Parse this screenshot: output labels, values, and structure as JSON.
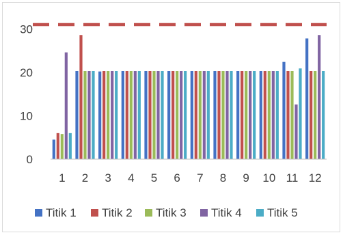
{
  "chart_data": {
    "type": "bar",
    "categories": [
      "1",
      "2",
      "3",
      "4",
      "5",
      "6",
      "7",
      "8",
      "9",
      "10",
      "11",
      "12"
    ],
    "series": [
      {
        "name": "Titik 1",
        "color": "#4472C4",
        "values": [
          4.5,
          20.3,
          20.2,
          20.3,
          20.3,
          20.3,
          20.3,
          20.3,
          20.3,
          20.3,
          22.4,
          27.8
        ]
      },
      {
        "name": "Titik 2",
        "color": "#C0504D",
        "values": [
          6.0,
          28.6,
          20.3,
          20.3,
          20.3,
          20.3,
          20.3,
          20.3,
          20.3,
          20.3,
          20.3,
          20.3
        ]
      },
      {
        "name": "Titik 3",
        "color": "#9BBB59",
        "values": [
          5.8,
          20.3,
          20.3,
          20.3,
          20.3,
          20.3,
          20.3,
          20.3,
          20.3,
          20.3,
          20.3,
          20.3
        ]
      },
      {
        "name": "Titik 4",
        "color": "#8064A2",
        "values": [
          24.6,
          20.3,
          20.3,
          20.3,
          20.3,
          20.3,
          20.3,
          20.3,
          20.3,
          20.3,
          12.6,
          28.6
        ]
      },
      {
        "name": "Titik 5",
        "color": "#4BACC6",
        "values": [
          6.0,
          20.3,
          20.3,
          20.3,
          20.3,
          20.3,
          20.3,
          20.3,
          20.3,
          20.3,
          20.9,
          20.3
        ]
      }
    ],
    "yticks": [
      "0",
      "10",
      "20",
      "30"
    ],
    "ylim": [
      0,
      31
    ],
    "reference_line": {
      "value": 31,
      "color": "#C0504D",
      "style": "dashed"
    },
    "grid": false,
    "legend_position": "bottom",
    "title": "",
    "xlabel": "",
    "ylabel": ""
  }
}
